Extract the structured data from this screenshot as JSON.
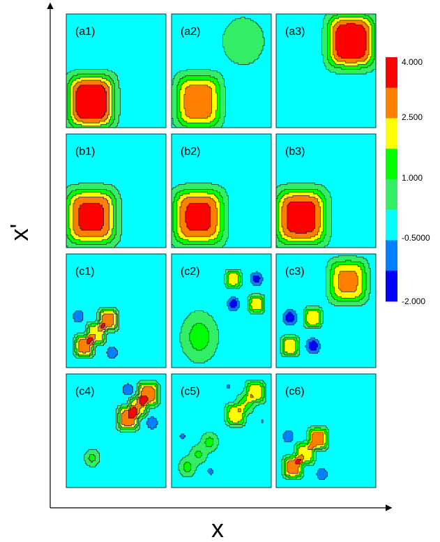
{
  "chart_data": {
    "type": "heatmap",
    "axes": {
      "xlabel": "x",
      "ylabel": "x'"
    },
    "colorbar": {
      "tick_labels": [
        "4.000",
        "2.500",
        "1.000",
        "-0.5000",
        "-2.000"
      ],
      "levels": [
        {
          "color": "#ff0000"
        },
        {
          "color": "#ff7f00"
        },
        {
          "color": "#ffff00"
        },
        {
          "color": "#00ff00"
        },
        {
          "color": "#33ee66"
        },
        {
          "color": "#00ffff"
        },
        {
          "color": "#0080ff"
        },
        {
          "color": "#0000ff"
        }
      ]
    },
    "panels": [
      {
        "label": "(a1)",
        "blobs": [
          {
            "x": 0.25,
            "y": 0.23,
            "sx": 0.25,
            "sy": 0.25,
            "peak": 4.0,
            "mode": "rounded"
          }
        ]
      },
      {
        "label": "(a2)",
        "blobs": [
          {
            "x": 0.27,
            "y": 0.23,
            "sx": 0.24,
            "sy": 0.25,
            "peak": 3.0,
            "mode": "rounded"
          },
          {
            "x": 0.72,
            "y": 0.76,
            "sx": 0.26,
            "sy": 0.26,
            "peak": 1.0,
            "mode": "flat"
          }
        ]
      },
      {
        "label": "(a3)",
        "blobs": [
          {
            "x": 0.75,
            "y": 0.76,
            "sx": 0.25,
            "sy": 0.25,
            "peak": 4.0,
            "mode": "rounded"
          }
        ]
      },
      {
        "label": "(b1)",
        "blobs": [
          {
            "x": 0.25,
            "y": 0.27,
            "sx": 0.27,
            "sy": 0.26,
            "peak": 3.5,
            "mode": "rounded"
          }
        ]
      },
      {
        "label": "(b2)",
        "blobs": [
          {
            "x": 0.27,
            "y": 0.27,
            "sx": 0.27,
            "sy": 0.26,
            "peak": 3.5,
            "mode": "rounded"
          }
        ]
      },
      {
        "label": "(b3)",
        "blobs": [
          {
            "x": 0.25,
            "y": 0.27,
            "sx": 0.27,
            "sy": 0.26,
            "peak": 3.7,
            "mode": "rounded"
          }
        ]
      },
      {
        "label": "(c1)",
        "blobs": [
          {
            "x": 0.18,
            "y": 0.19,
            "sx": 0.1,
            "sy": 0.1,
            "peak": 3.0,
            "mode": "rounded"
          },
          {
            "x": 0.42,
            "y": 0.42,
            "sx": 0.1,
            "sy": 0.1,
            "peak": 3.0,
            "mode": "rounded"
          },
          {
            "x": 0.3,
            "y": 0.3,
            "sx": 0.1,
            "sy": 0.1,
            "peak": 2.4,
            "mode": "rounded"
          },
          {
            "x": 0.12,
            "y": 0.45,
            "sx": 0.08,
            "sy": 0.08,
            "peak": -1.2,
            "mode": "flat"
          },
          {
            "x": 0.46,
            "y": 0.13,
            "sx": 0.08,
            "sy": 0.08,
            "peak": -1.2,
            "mode": "flat"
          }
        ]
      },
      {
        "label": "(c2)",
        "blobs": [
          {
            "x": 0.28,
            "y": 0.27,
            "sx": 0.21,
            "sy": 0.25,
            "peak": 1.6,
            "mode": "flat"
          },
          {
            "x": 0.62,
            "y": 0.78,
            "sx": 0.08,
            "sy": 0.08,
            "peak": 2.3,
            "mode": "rounded"
          },
          {
            "x": 0.85,
            "y": 0.56,
            "sx": 0.08,
            "sy": 0.08,
            "peak": 2.3,
            "mode": "rounded"
          },
          {
            "x": 0.62,
            "y": 0.56,
            "sx": 0.08,
            "sy": 0.08,
            "peak": -1.8,
            "mode": "flat"
          },
          {
            "x": 0.85,
            "y": 0.78,
            "sx": 0.08,
            "sy": 0.08,
            "peak": -1.8,
            "mode": "flat"
          }
        ]
      },
      {
        "label": "(c3)",
        "blobs": [
          {
            "x": 0.72,
            "y": 0.76,
            "sx": 0.2,
            "sy": 0.2,
            "peak": 2.7,
            "mode": "rounded"
          },
          {
            "x": 0.37,
            "y": 0.44,
            "sx": 0.09,
            "sy": 0.09,
            "peak": 2.4,
            "mode": "rounded"
          },
          {
            "x": 0.14,
            "y": 0.19,
            "sx": 0.09,
            "sy": 0.09,
            "peak": 2.4,
            "mode": "rounded"
          },
          {
            "x": 0.14,
            "y": 0.44,
            "sx": 0.09,
            "sy": 0.09,
            "peak": -2.0,
            "mode": "flat"
          },
          {
            "x": 0.37,
            "y": 0.19,
            "sx": 0.09,
            "sy": 0.09,
            "peak": -2.0,
            "mode": "flat"
          }
        ]
      },
      {
        "label": "(c4)",
        "blobs": [
          {
            "x": 0.62,
            "y": 0.61,
            "sx": 0.11,
            "sy": 0.11,
            "peak": 3.0,
            "mode": "rounded"
          },
          {
            "x": 0.82,
            "y": 0.82,
            "sx": 0.11,
            "sy": 0.11,
            "peak": 3.0,
            "mode": "rounded"
          },
          {
            "x": 0.72,
            "y": 0.71,
            "sx": 0.1,
            "sy": 0.1,
            "peak": 2.2,
            "mode": "rounded"
          },
          {
            "x": 0.62,
            "y": 0.86,
            "sx": 0.08,
            "sy": 0.08,
            "peak": -1.2,
            "mode": "flat"
          },
          {
            "x": 0.86,
            "y": 0.57,
            "sx": 0.08,
            "sy": 0.08,
            "peak": -1.2,
            "mode": "flat"
          },
          {
            "x": 0.26,
            "y": 0.26,
            "sx": 0.09,
            "sy": 0.09,
            "peak": 1.3,
            "mode": "flat"
          }
        ]
      },
      {
        "label": "(c5)",
        "blobs": [
          {
            "x": 0.64,
            "y": 0.64,
            "sx": 0.1,
            "sy": 0.1,
            "peak": 2.3,
            "mode": "rounded"
          },
          {
            "x": 0.84,
            "y": 0.84,
            "sx": 0.1,
            "sy": 0.1,
            "peak": 2.3,
            "mode": "rounded"
          },
          {
            "x": 0.74,
            "y": 0.74,
            "sx": 0.11,
            "sy": 0.11,
            "peak": 1.6,
            "mode": "flat"
          },
          {
            "x": 0.16,
            "y": 0.18,
            "sx": 0.1,
            "sy": 0.1,
            "peak": 1.4,
            "mode": "flat"
          },
          {
            "x": 0.38,
            "y": 0.4,
            "sx": 0.1,
            "sy": 0.1,
            "peak": 1.4,
            "mode": "flat"
          },
          {
            "x": 0.27,
            "y": 0.29,
            "sx": 0.1,
            "sy": 0.1,
            "peak": 1.2,
            "mode": "flat"
          },
          {
            "x": 0.11,
            "y": 0.45,
            "sx": 0.05,
            "sy": 0.05,
            "peak": -0.8,
            "mode": "flat"
          },
          {
            "x": 0.39,
            "y": 0.14,
            "sx": 0.05,
            "sy": 0.05,
            "peak": -0.8,
            "mode": "flat"
          },
          {
            "x": 0.57,
            "y": 0.89,
            "sx": 0.025,
            "sy": 0.025,
            "peak": -0.8,
            "mode": "flat"
          },
          {
            "x": 0.91,
            "y": 0.58,
            "sx": 0.025,
            "sy": 0.025,
            "peak": -0.8,
            "mode": "flat"
          }
        ]
      },
      {
        "label": "(c6)",
        "blobs": [
          {
            "x": 0.17,
            "y": 0.18,
            "sx": 0.1,
            "sy": 0.1,
            "peak": 3.0,
            "mode": "rounded"
          },
          {
            "x": 0.42,
            "y": 0.43,
            "sx": 0.1,
            "sy": 0.1,
            "peak": 3.0,
            "mode": "rounded"
          },
          {
            "x": 0.29,
            "y": 0.3,
            "sx": 0.1,
            "sy": 0.1,
            "peak": 2.4,
            "mode": "rounded"
          },
          {
            "x": 0.12,
            "y": 0.45,
            "sx": 0.08,
            "sy": 0.08,
            "peak": -1.2,
            "mode": "flat"
          },
          {
            "x": 0.46,
            "y": 0.12,
            "sx": 0.08,
            "sy": 0.08,
            "peak": -1.2,
            "mode": "flat"
          }
        ]
      }
    ]
  }
}
